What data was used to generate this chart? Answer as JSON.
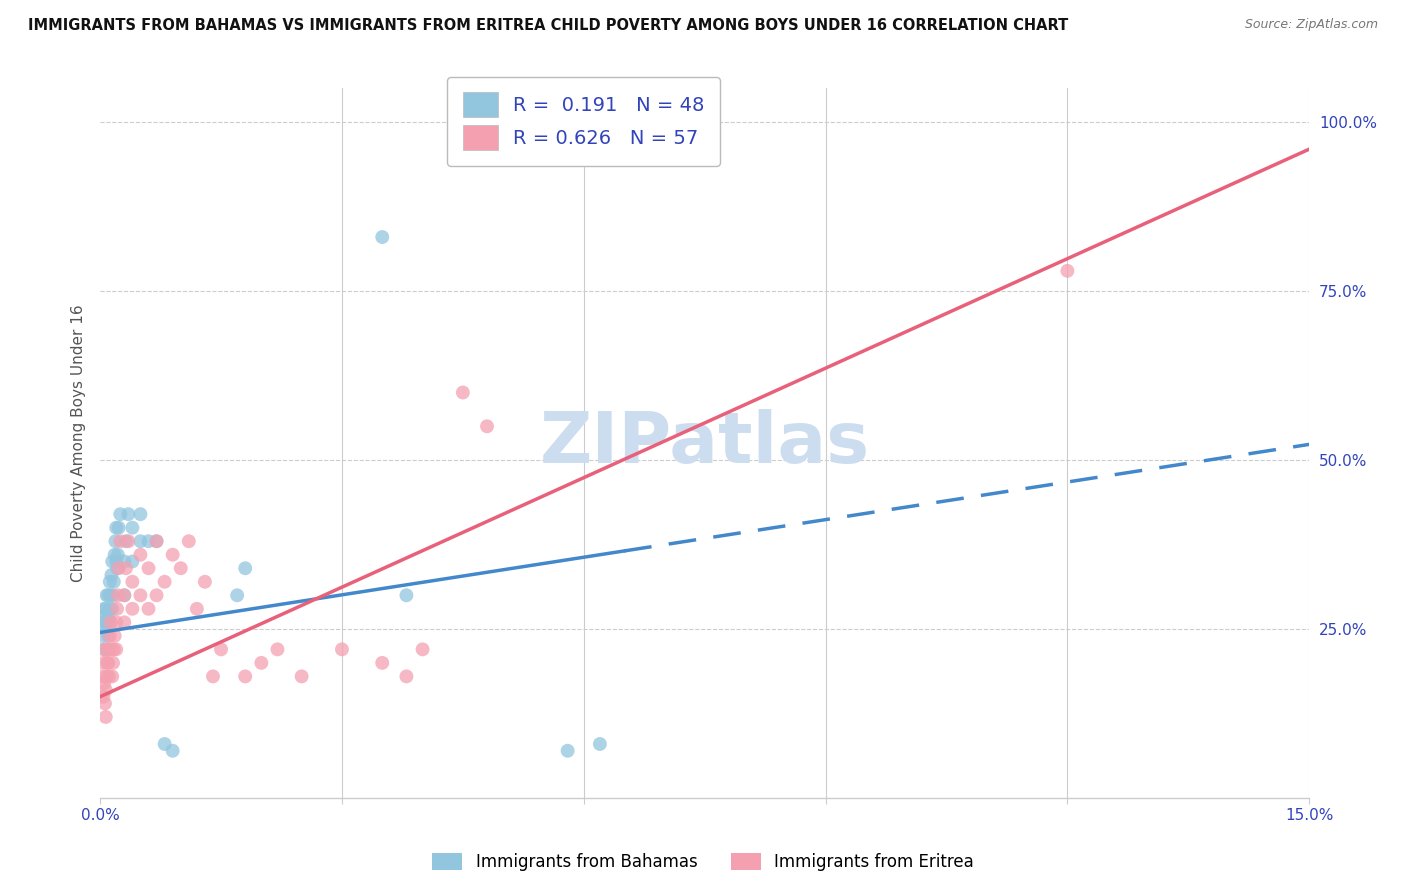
{
  "title": "IMMIGRANTS FROM BAHAMAS VS IMMIGRANTS FROM ERITREA CHILD POVERTY AMONG BOYS UNDER 16 CORRELATION CHART",
  "source": "Source: ZipAtlas.com",
  "ylabel": "Child Poverty Among Boys Under 16",
  "xlim": [
    0.0,
    0.15
  ],
  "ylim": [
    0.0,
    1.05
  ],
  "color_bahamas": "#92c5de",
  "color_eritrea": "#f4a0b0",
  "line_color_bahamas": "#4488cc",
  "line_color_eritrea": "#e8607a",
  "R_bahamas": 0.191,
  "N_bahamas": 48,
  "R_eritrea": 0.626,
  "N_eritrea": 57,
  "watermark": "ZIPatlas",
  "watermark_color": "#cdddf0",
  "bahamas_x": [
    0.0003,
    0.0004,
    0.0005,
    0.0005,
    0.0006,
    0.0006,
    0.0007,
    0.0008,
    0.0008,
    0.0009,
    0.001,
    0.001,
    0.001,
    0.0012,
    0.0012,
    0.0013,
    0.0013,
    0.0014,
    0.0015,
    0.0015,
    0.0016,
    0.0017,
    0.0018,
    0.0019,
    0.002,
    0.002,
    0.0021,
    0.0022,
    0.0023,
    0.0025,
    0.003,
    0.003,
    0.0032,
    0.0035,
    0.004,
    0.004,
    0.005,
    0.005,
    0.006,
    0.007,
    0.008,
    0.009,
    0.017,
    0.018,
    0.035,
    0.038,
    0.058,
    0.062
  ],
  "bahamas_y": [
    0.24,
    0.26,
    0.22,
    0.28,
    0.25,
    0.27,
    0.28,
    0.3,
    0.26,
    0.22,
    0.24,
    0.27,
    0.3,
    0.28,
    0.32,
    0.26,
    0.3,
    0.33,
    0.28,
    0.35,
    0.3,
    0.32,
    0.36,
    0.38,
    0.35,
    0.4,
    0.34,
    0.36,
    0.4,
    0.42,
    0.3,
    0.35,
    0.38,
    0.42,
    0.35,
    0.4,
    0.38,
    0.42,
    0.38,
    0.38,
    0.08,
    0.07,
    0.3,
    0.34,
    0.83,
    0.3,
    0.07,
    0.08
  ],
  "eritrea_x": [
    0.0003,
    0.0004,
    0.0004,
    0.0005,
    0.0005,
    0.0006,
    0.0007,
    0.0007,
    0.0008,
    0.0009,
    0.001,
    0.001,
    0.0011,
    0.0012,
    0.0013,
    0.0014,
    0.0015,
    0.0016,
    0.0017,
    0.0018,
    0.002,
    0.002,
    0.0021,
    0.0022,
    0.0023,
    0.0025,
    0.003,
    0.003,
    0.0032,
    0.0035,
    0.004,
    0.004,
    0.005,
    0.005,
    0.006,
    0.006,
    0.007,
    0.007,
    0.008,
    0.009,
    0.01,
    0.011,
    0.012,
    0.013,
    0.014,
    0.015,
    0.018,
    0.02,
    0.022,
    0.025,
    0.03,
    0.035,
    0.038,
    0.04,
    0.045,
    0.048,
    0.12
  ],
  "eritrea_y": [
    0.18,
    0.2,
    0.15,
    0.22,
    0.17,
    0.14,
    0.12,
    0.16,
    0.18,
    0.2,
    0.2,
    0.22,
    0.18,
    0.24,
    0.26,
    0.22,
    0.18,
    0.2,
    0.22,
    0.24,
    0.22,
    0.26,
    0.28,
    0.3,
    0.34,
    0.38,
    0.26,
    0.3,
    0.34,
    0.38,
    0.28,
    0.32,
    0.3,
    0.36,
    0.28,
    0.34,
    0.3,
    0.38,
    0.32,
    0.36,
    0.34,
    0.38,
    0.28,
    0.32,
    0.18,
    0.22,
    0.18,
    0.2,
    0.22,
    0.18,
    0.22,
    0.2,
    0.18,
    0.22,
    0.6,
    0.55,
    0.78
  ],
  "line_bahamas_x0": 0.0,
  "line_bahamas_y0": 0.245,
  "line_bahamas_x1": 0.062,
  "line_bahamas_y1": 0.36,
  "line_eritrea_x0": 0.0,
  "line_eritrea_y0": 0.15,
  "line_eritrea_x1": 0.15,
  "line_eritrea_y1": 0.96
}
